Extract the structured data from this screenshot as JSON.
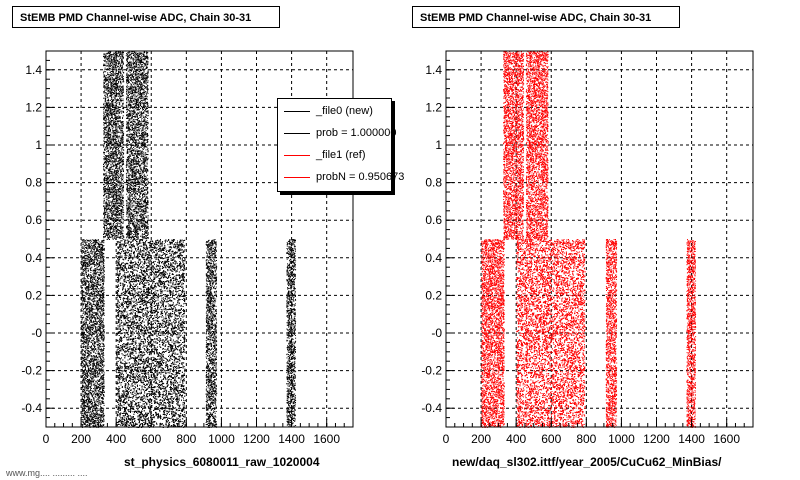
{
  "colors": {
    "file0": "#000000",
    "file1": "#ff0000"
  },
  "legend": {
    "entries": [
      {
        "label": "_file0 (new)",
        "color": "#000000"
      },
      {
        "label": "prob = 1.000000",
        "color": "#000000"
      },
      {
        "label": "_file1 (ref)",
        "color": "#ff0000"
      },
      {
        "label": "probN = 0.950673",
        "color": "#ff0000"
      }
    ]
  },
  "footer": {
    "text": "www.mg.... .........  ...."
  },
  "chart_data": [
    {
      "type": "scatter",
      "title": "StEMB PMD Channel-wise ADC, Chain 30-31",
      "xlabel": "st_physics_6080011_raw_1020004",
      "ylabel": "",
      "xlim": [
        0,
        1750
      ],
      "ylim": [
        -0.5,
        1.5
      ],
      "xticks": [
        0,
        200,
        400,
        600,
        800,
        1000,
        1200,
        1400,
        1600
      ],
      "yticks": [
        -0.4,
        -0.2,
        0,
        0.2,
        0.4,
        0.6,
        0.8,
        1,
        1.2,
        1.4
      ],
      "ytick_labels": [
        "-0.4",
        "-0.2",
        "-0",
        "0.2",
        "0.4",
        "0.6",
        "0.8",
        "1",
        "1.2",
        "1.4"
      ],
      "grid": true,
      "legend_position": "top-right",
      "color": "#000000",
      "bands": [
        {
          "x": [
            200,
            330
          ],
          "y": [
            -0.5,
            0.5
          ]
        },
        {
          "x": [
            325,
            440
          ],
          "y": [
            0.5,
            1.5
          ]
        },
        {
          "x": [
            400,
            790
          ],
          "y": [
            -0.5,
            0.5
          ]
        },
        {
          "x": [
            455,
            580
          ],
          "y": [
            0.5,
            1.5
          ]
        },
        {
          "x": [
            910,
            970
          ],
          "y": [
            -0.5,
            0.5
          ]
        },
        {
          "x": [
            1370,
            1420
          ],
          "y": [
            -0.5,
            0.5
          ]
        }
      ]
    },
    {
      "type": "scatter",
      "title": "StEMB PMD Channel-wise ADC, Chain 30-31",
      "xlabel": "new/daq_sl302.ittf/year_2005/CuCu62_MinBias/",
      "ylabel": "",
      "xlim": [
        0,
        1750
      ],
      "ylim": [
        -0.5,
        1.5
      ],
      "xticks": [
        0,
        200,
        400,
        600,
        800,
        1000,
        1200,
        1400,
        1600
      ],
      "yticks": [
        -0.4,
        -0.2,
        0,
        0.2,
        0.4,
        0.6,
        0.8,
        1,
        1.2,
        1.4
      ],
      "ytick_labels": [
        "-0.4",
        "-0.2",
        "-0",
        "0.2",
        "0.4",
        "0.6",
        "0.8",
        "1",
        "1.2",
        "1.4"
      ],
      "grid": true,
      "color": "#ff0000",
      "bands": [
        {
          "x": [
            200,
            330
          ],
          "y": [
            -0.5,
            0.5
          ]
        },
        {
          "x": [
            325,
            440
          ],
          "y": [
            0.5,
            1.5
          ]
        },
        {
          "x": [
            400,
            790
          ],
          "y": [
            -0.5,
            0.5
          ]
        },
        {
          "x": [
            455,
            580
          ],
          "y": [
            0.5,
            1.5
          ]
        },
        {
          "x": [
            910,
            970
          ],
          "y": [
            -0.5,
            0.5
          ]
        },
        {
          "x": [
            1370,
            1420
          ],
          "y": [
            -0.5,
            0.5
          ]
        }
      ]
    }
  ]
}
